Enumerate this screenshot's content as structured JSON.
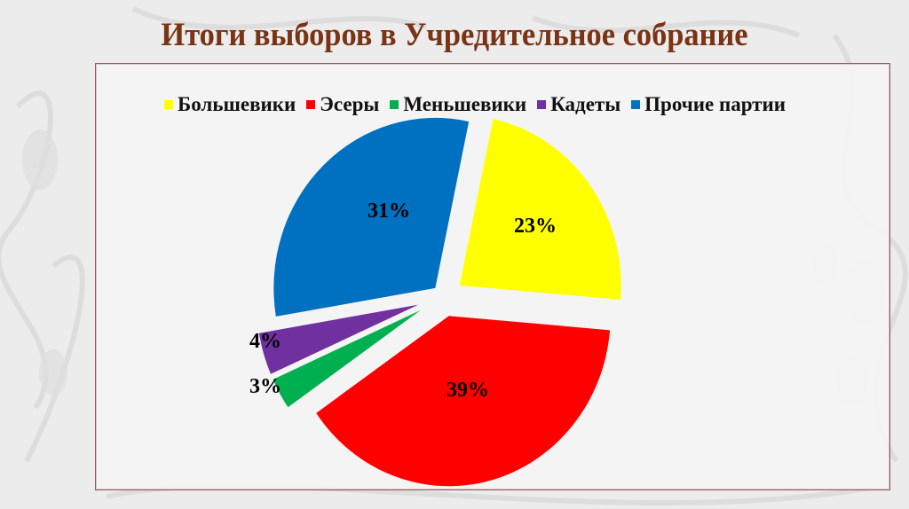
{
  "title": "Итоги выборов в Учредительное собрание",
  "legend": [
    {
      "label": "Большевики",
      "color": "#ffff00"
    },
    {
      "label": "Эсеры",
      "color": "#ff0000"
    },
    {
      "label": "Меньшевики",
      "color": "#00b050"
    },
    {
      "label": "Кадеты",
      "color": "#7030a0"
    },
    {
      "label": "Прочие партии",
      "color": "#0070c0"
    }
  ],
  "chart_data": {
    "type": "pie",
    "title": "Итоги выборов в Учредительное собрание",
    "categories": [
      "Большевики",
      "Эсеры",
      "Меньшевики",
      "Кадеты",
      "Прочие партии"
    ],
    "values": [
      23,
      39,
      3,
      4,
      31
    ],
    "labels": [
      "23%",
      "39%",
      "3%",
      "4%",
      "31%"
    ],
    "colors": [
      "#ffff00",
      "#ff0000",
      "#00b050",
      "#7030a0",
      "#0070c0"
    ],
    "exploded": true,
    "legend_position": "top",
    "unit": "%"
  }
}
